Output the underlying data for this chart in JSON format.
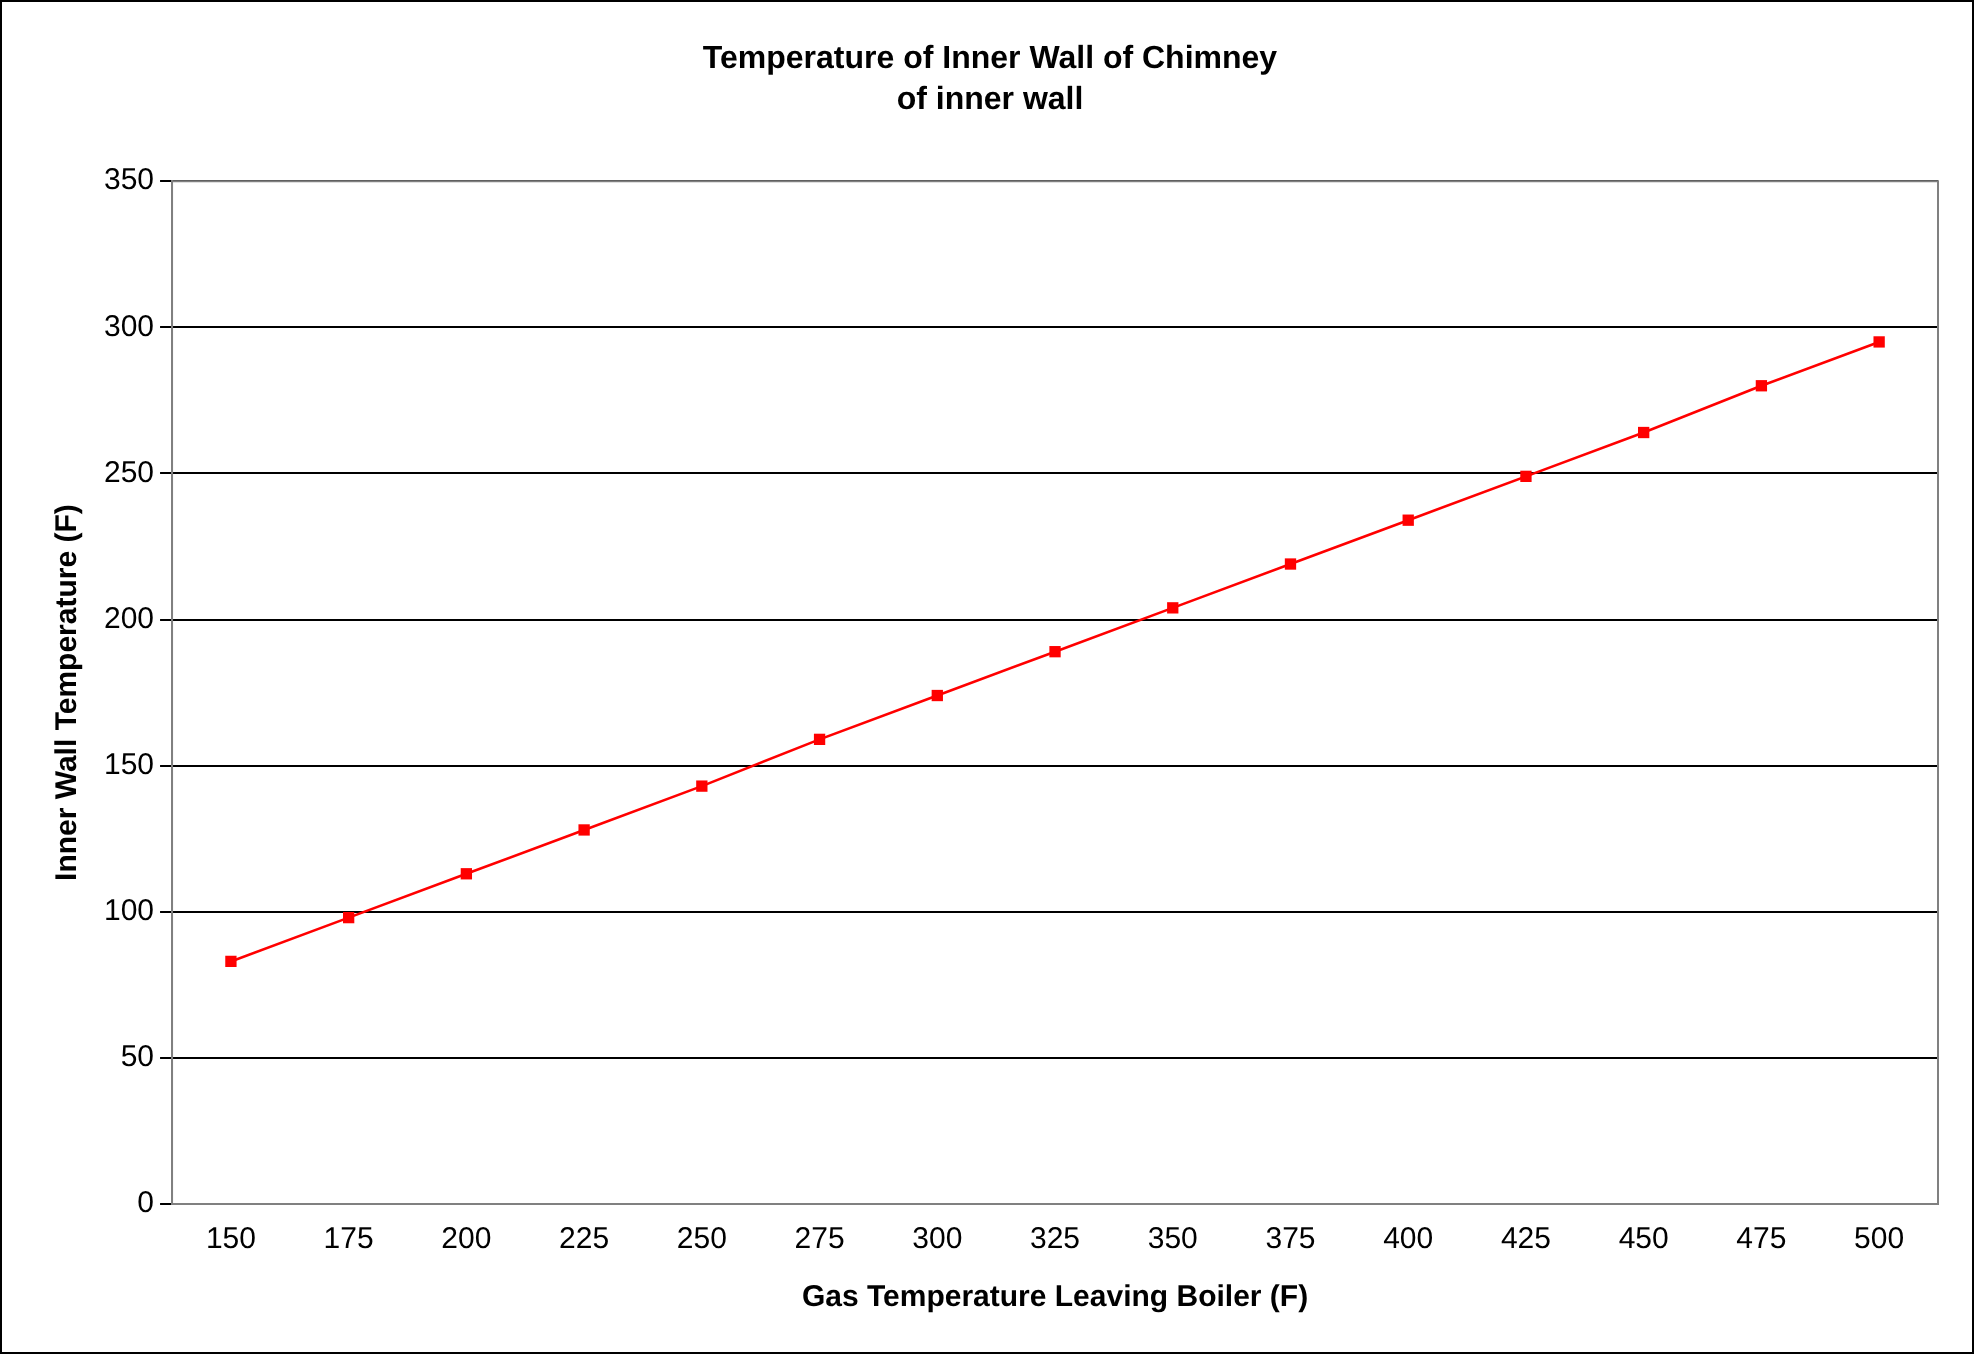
{
  "chart_data": {
    "type": "line",
    "title": "Temperature of Inner Wall of Chimney",
    "subtitle": "of inner wall",
    "xlabel": "Gas Temperature Leaving Boiler (F)",
    "ylabel": "Inner Wall Temperature (F)",
    "categories": [
      "150",
      "175",
      "200",
      "225",
      "250",
      "275",
      "300",
      "325",
      "350",
      "375",
      "400",
      "425",
      "450",
      "475",
      "500"
    ],
    "series": [
      {
        "color": "#ff0000",
        "values": [
          83,
          98,
          113,
          128,
          143,
          159,
          174,
          189,
          204,
          219,
          234,
          249,
          264,
          280,
          295
        ]
      }
    ],
    "ylim": [
      0,
      350
    ],
    "yticks": [
      0,
      50,
      100,
      150,
      200,
      250,
      300,
      350
    ],
    "grid": "y",
    "legend": false,
    "marker": "square",
    "line_style": "solid"
  }
}
